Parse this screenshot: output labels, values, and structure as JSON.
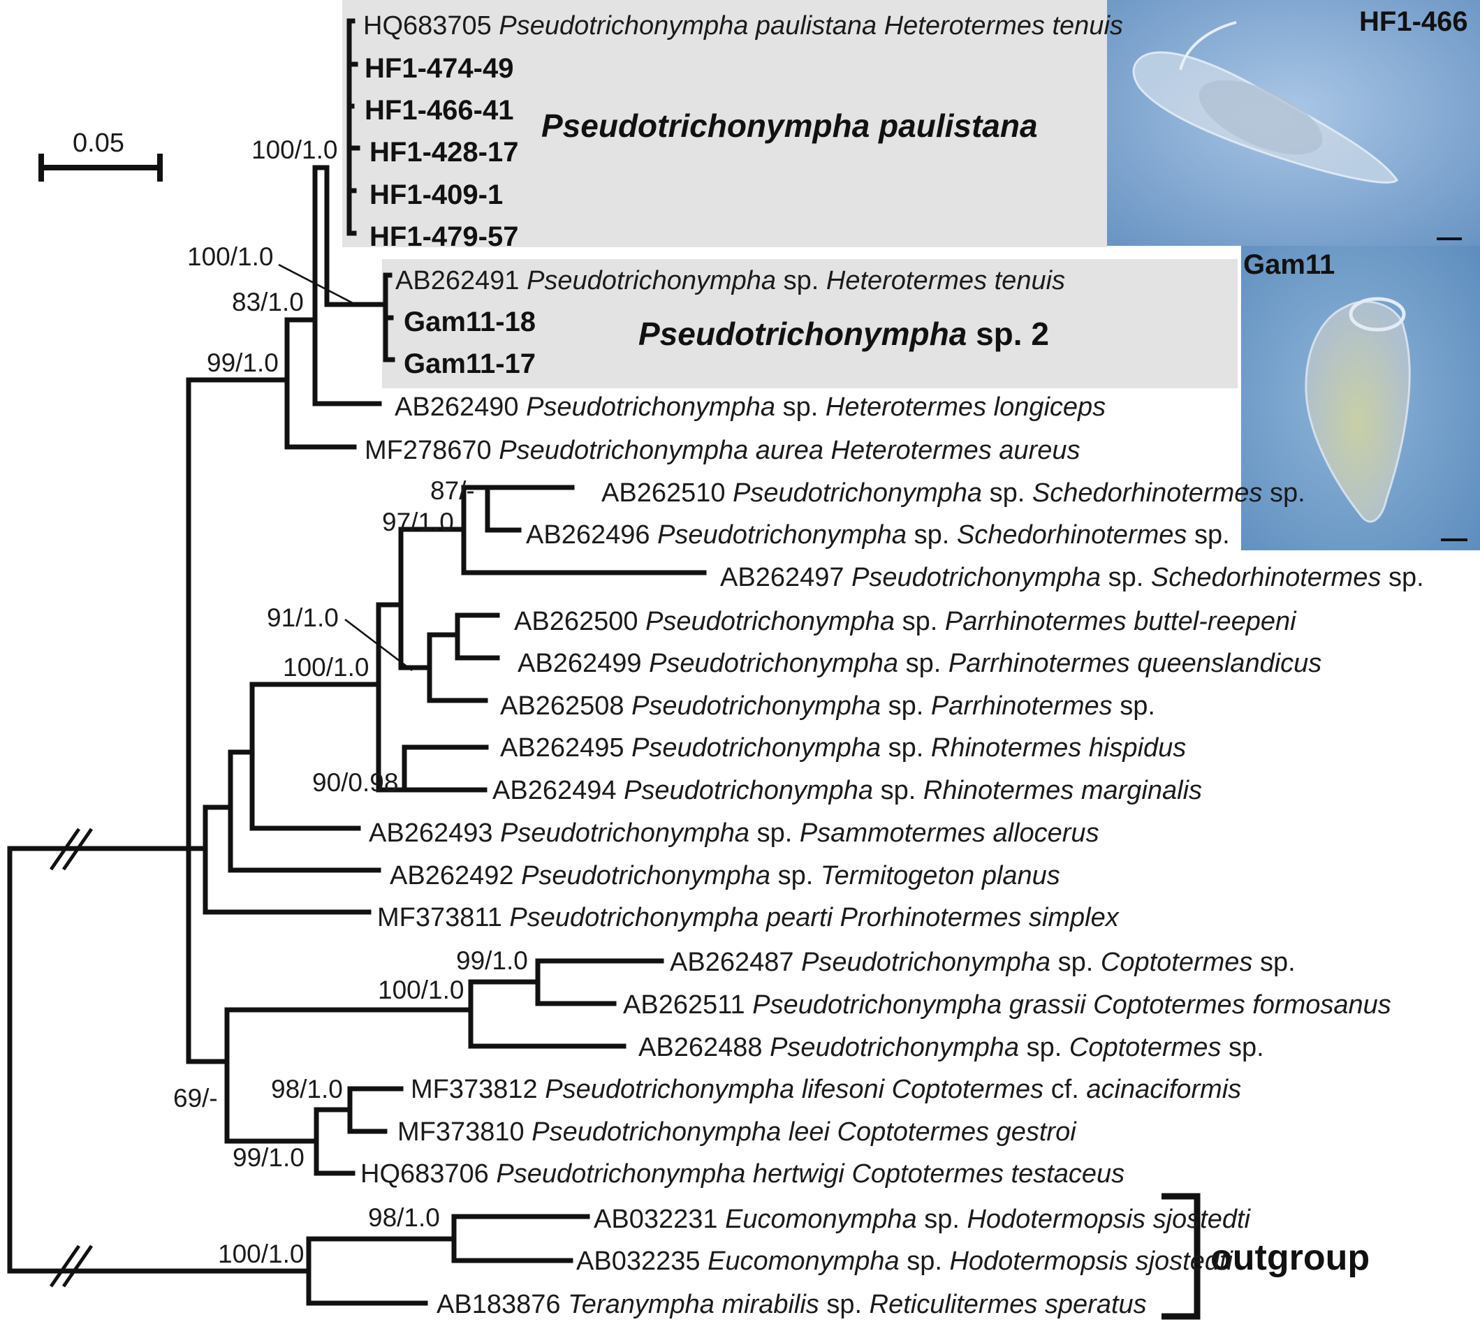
{
  "scale_bar": {
    "label": "0.05"
  },
  "clades": {
    "paulistana": {
      "name": "Pseudotrichonympha paulistana"
    },
    "sp2": {
      "name_italic": "Pseudotrichonympha",
      "name_plain": " sp. 2"
    }
  },
  "photos": {
    "hf": {
      "label": "HF1-466"
    },
    "gam": {
      "label": "Gam11"
    }
  },
  "outgroup_label": "outgroup",
  "taxa": [
    {
      "acc": "HQ683705 ",
      "genus": "Pseudotrichonympha paulistana",
      "mid": " ",
      "host": "Heterotermes tenuis",
      "tail": ""
    },
    {
      "bold": "HF1-474-49"
    },
    {
      "bold": "HF1-466-41"
    },
    {
      "bold": "HF1-428-17"
    },
    {
      "bold": "HF1-409-1"
    },
    {
      "bold": "HF1-479-57"
    },
    {
      "acc": "AB262491 ",
      "genus": "Pseudotrichonympha",
      "mid": " sp. ",
      "host": "Heterotermes tenuis",
      "tail": ""
    },
    {
      "bold": "Gam11-18"
    },
    {
      "bold": "Gam11-17"
    },
    {
      "acc": "AB262490 ",
      "genus": "Pseudotrichonympha",
      "mid": " sp. ",
      "host": "Heterotermes longiceps",
      "tail": ""
    },
    {
      "acc": "MF278670 ",
      "genus": "Pseudotrichonympha aurea",
      "mid": " ",
      "host": "Heterotermes aureus",
      "tail": ""
    },
    {
      "acc": "AB262510 ",
      "genus": "Pseudotrichonympha",
      "mid": " sp. ",
      "host": "Schedorhinotermes",
      "tail": " sp."
    },
    {
      "acc": "AB262496 ",
      "genus": "Pseudotrichonympha",
      "mid": " sp. ",
      "host": "Schedorhinotermes",
      "tail": " sp."
    },
    {
      "acc": "AB262497 ",
      "genus": "Pseudotrichonympha",
      "mid": " sp. ",
      "host": "Schedorhinotermes",
      "tail": " sp."
    },
    {
      "acc": "AB262500 ",
      "genus": "Pseudotrichonympha",
      "mid": " sp. ",
      "host": "Parrhinotermes buttel-reepeni",
      "tail": ""
    },
    {
      "acc": "AB262499 ",
      "genus": "Pseudotrichonympha",
      "mid": " sp. ",
      "host": "Parrhinotermes queenslandicus",
      "tail": ""
    },
    {
      "acc": "AB262508 ",
      "genus": "Pseudotrichonympha",
      "mid": " sp. ",
      "host": "Parrhinotermes",
      "tail": " sp."
    },
    {
      "acc": "AB262495 ",
      "genus": "Pseudotrichonympha",
      "mid": " sp. ",
      "host": "Rhinotermes hispidus",
      "tail": ""
    },
    {
      "acc": "AB262494 ",
      "genus": "Pseudotrichonympha",
      "mid": " sp. ",
      "host": "Rhinotermes marginalis",
      "tail": ""
    },
    {
      "acc": "AB262493 ",
      "genus": "Pseudotrichonympha",
      "mid": " sp. ",
      "host": "Psammotermes allocerus",
      "tail": ""
    },
    {
      "acc": "AB262492 ",
      "genus": "Pseudotrichonympha",
      "mid": " sp. ",
      "host": "Termitogeton planus",
      "tail": ""
    },
    {
      "acc": "MF373811 ",
      "genus": "Pseudotrichonympha pearti",
      "mid": " ",
      "host": "Prorhinotermes simplex",
      "tail": ""
    },
    {
      "acc": "AB262487 ",
      "genus": "Pseudotrichonympha",
      "mid": " sp. ",
      "host": "Coptotermes",
      "tail": " sp."
    },
    {
      "acc": "AB262511 ",
      "genus": "Pseudotrichonympha grassii",
      "mid": " ",
      "host": "Coptotermes formosanus",
      "tail": ""
    },
    {
      "acc": "AB262488 ",
      "genus": "Pseudotrichonympha",
      "mid": " sp. ",
      "host": "Coptotermes",
      "tail": " sp."
    },
    {
      "acc": "MF373812 ",
      "genus": "Pseudotrichonympha lifesoni",
      "mid": " ",
      "host": "Coptotermes",
      "tail": " cf. ",
      "host2": "acinaciformis"
    },
    {
      "acc": "MF373810 ",
      "genus": "Pseudotrichonympha leei",
      "mid": " ",
      "host": "Coptotermes gestroi",
      "tail": ""
    },
    {
      "acc": "HQ683706 ",
      "genus": "Pseudotrichonympha hertwigi",
      "mid": " ",
      "host": "Coptotermes testaceus",
      "tail": ""
    },
    {
      "acc": "AB032231 ",
      "genus": "Eucomonympha",
      "mid": " sp. ",
      "host": "Hodotermopsis sjostedti",
      "tail": ""
    },
    {
      "acc": "AB032235 ",
      "genus": "Eucomonympha",
      "mid": " sp. ",
      "host": "Hodotermopsis sjostedti",
      "tail": ""
    },
    {
      "acc": "AB183876 ",
      "genus": "Teranympha mirabilis",
      "mid": " sp. ",
      "host": "Reticulitermes speratus",
      "tail": ""
    }
  ],
  "supports": [
    "100/1.0",
    "100/1.0",
    "83/1.0",
    "99/1.0",
    "87/-",
    "97/1.0",
    "91/1.0",
    "100/1.0",
    "90/0.98",
    "99/1.0",
    "100/1.0",
    "69/-",
    "98/1.0",
    "99/1.0",
    "98/1.0",
    "100/1.0"
  ],
  "colors": {
    "clade_shade": "#e3e3e3",
    "photo_bg": "#6d9cc8",
    "ink": "#111111"
  }
}
